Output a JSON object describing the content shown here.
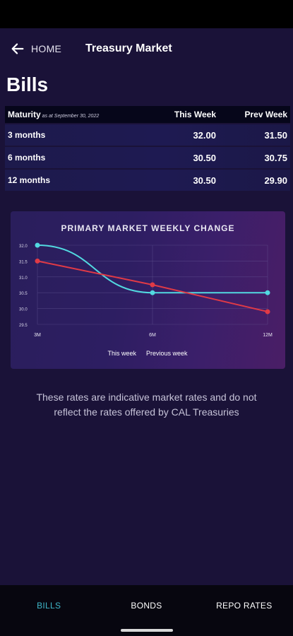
{
  "header": {
    "back_label": "HOME",
    "title": "Treasury Market"
  },
  "page_title": "Bills",
  "table": {
    "col_maturity": "Maturity",
    "as_at": "as at September 30, 2022",
    "col_this_week": "This Week",
    "col_prev_week": "Prev Week",
    "rows": [
      {
        "maturity": "3 months",
        "this_week": "32.00",
        "prev_week": "31.50"
      },
      {
        "maturity": "6 months",
        "this_week": "30.50",
        "prev_week": "30.75"
      },
      {
        "maturity": "12 months",
        "this_week": "30.50",
        "prev_week": "29.90"
      }
    ]
  },
  "chart_data": {
    "type": "line",
    "title": "PRIMARY MARKET WEEKLY CHANGE",
    "x": [
      "3M",
      "6M",
      "12M"
    ],
    "ylim": [
      29.5,
      32.0
    ],
    "yticks": [
      "32.0",
      "31.5",
      "31.0",
      "30.5",
      "30.0",
      "29.5"
    ],
    "series": [
      {
        "name": "This week",
        "values": [
          32.0,
          30.5,
          30.5
        ],
        "color": "#52d9e0"
      },
      {
        "name": "Previous week",
        "values": [
          31.5,
          30.75,
          29.9
        ],
        "color": "#e03a46"
      }
    ],
    "legend_position": "bottom",
    "grid": true
  },
  "disclaimer": "These rates are indicative market rates and do not reflect the rates offered by CAL Treasuries",
  "nav": {
    "items": [
      "BILLS",
      "BONDS",
      "REPO RATES"
    ],
    "active": "BILLS"
  },
  "colors": {
    "accent": "#3fb7c9",
    "background": "#1a1238"
  }
}
